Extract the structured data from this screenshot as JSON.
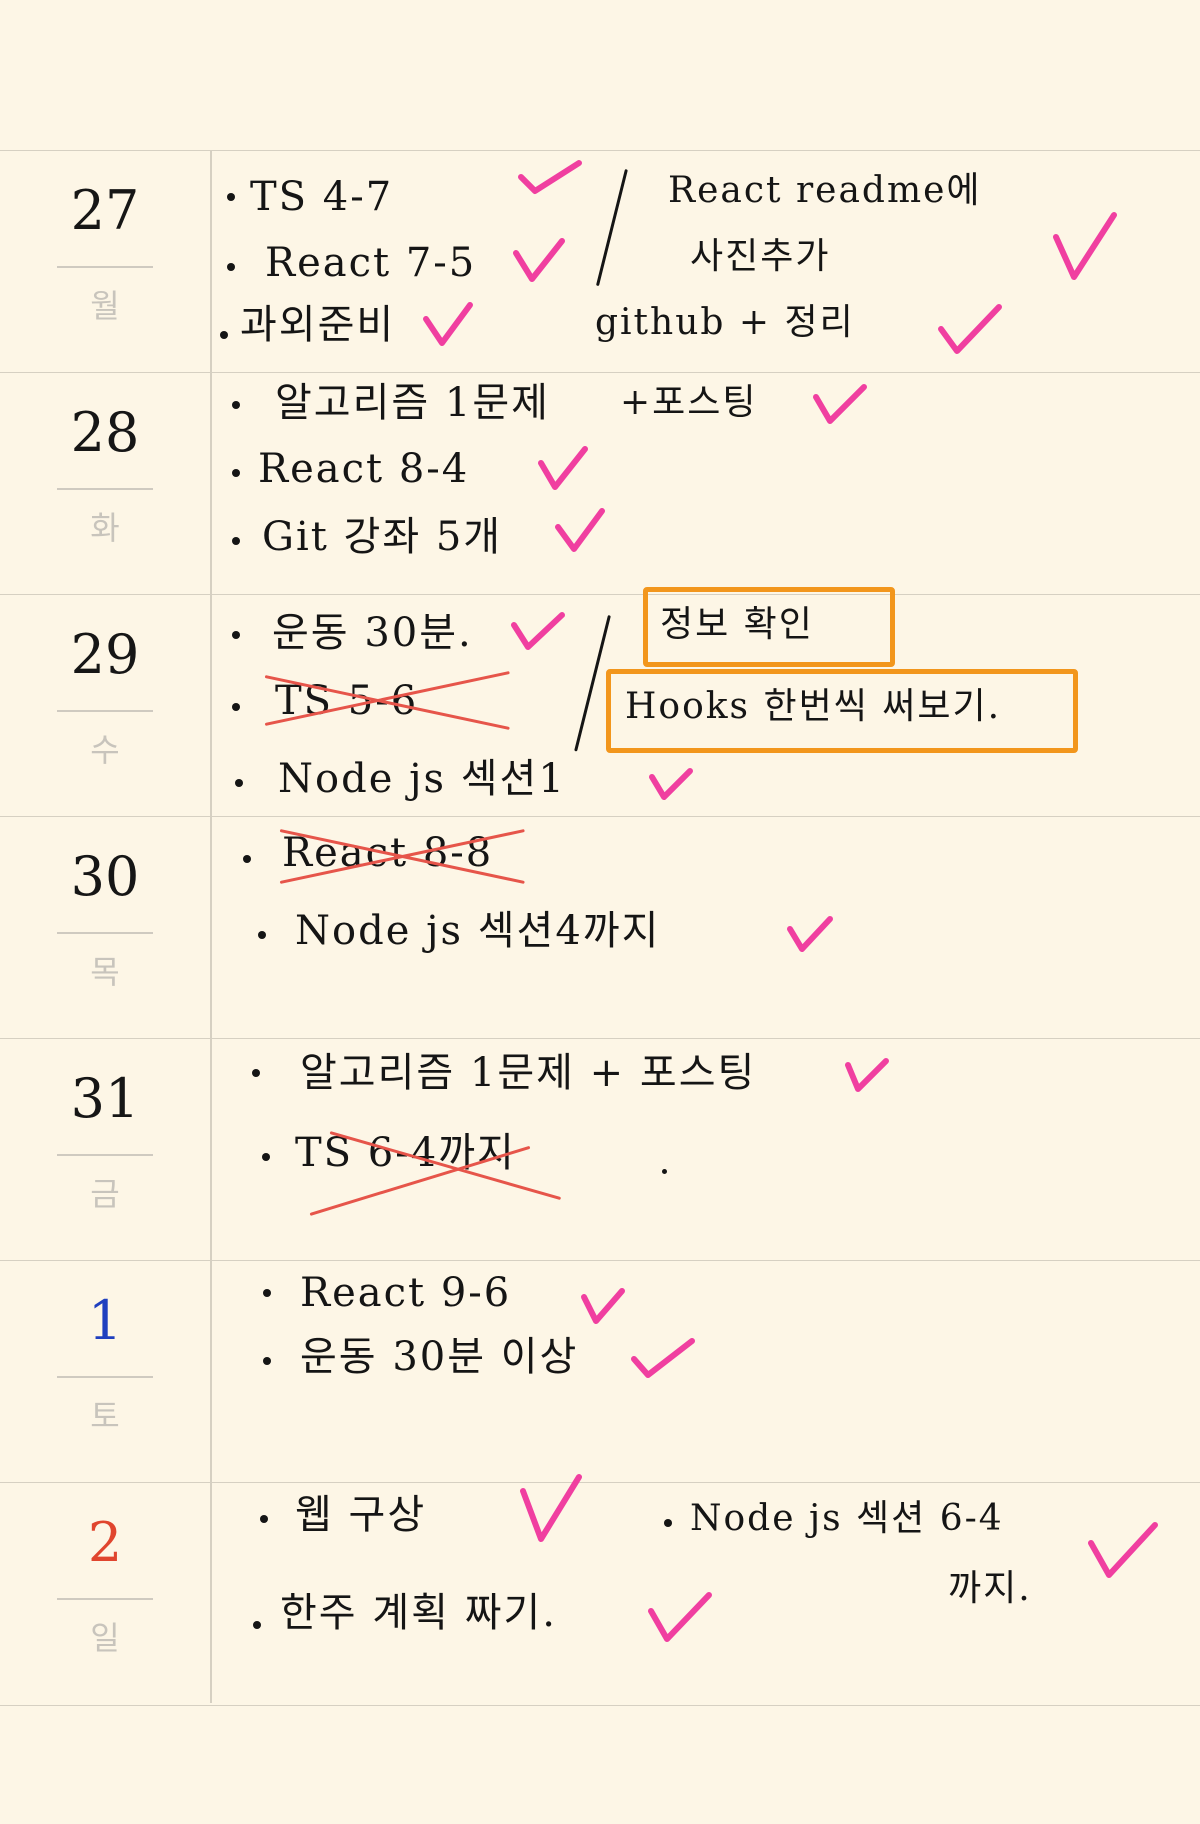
{
  "days": [
    {
      "date": "27",
      "weekday": "월",
      "date_color": "#161616",
      "tasks": [
        "TS 4-7",
        "React 7-5",
        "과외준비",
        "React readme에",
        "사진추가",
        "github + 정리"
      ]
    },
    {
      "date": "28",
      "weekday": "화",
      "date_color": "#161616",
      "tasks": [
        "알고리즘 1문제",
        "+포스팅",
        "React 8-4",
        "Git 강좌 5개"
      ]
    },
    {
      "date": "29",
      "weekday": "수",
      "date_color": "#161616",
      "tasks": [
        "운동 30분.",
        "TS 5-6",
        "Node js 섹션1",
        "정보 확인",
        "Hooks 한번씩 써보기."
      ]
    },
    {
      "date": "30",
      "weekday": "목",
      "date_color": "#161616",
      "tasks": [
        "React 8-8",
        "Node js 섹션4까지"
      ]
    },
    {
      "date": "31",
      "weekday": "금",
      "date_color": "#161616",
      "tasks": [
        "알고리즘 1문제 + 포스팅",
        "TS 6-4까지"
      ]
    },
    {
      "date": "1",
      "weekday": "토",
      "date_color": "#1f3fbf",
      "tasks": [
        "React 9-6",
        "운동 30분 이상"
      ]
    },
    {
      "date": "2",
      "weekday": "일",
      "date_color": "#e0452e",
      "tasks": [
        "웹 구상",
        "한주 계획 짜기.",
        "Node js 섹션 6-4",
        "까지."
      ]
    }
  ],
  "status": {
    "completed": [
      "TS 4-7",
      "React 7-5",
      "과외준비",
      "React readme에 사진추가 github + 정리",
      "알고리즘 1문제 +포스팅",
      "React 8-4",
      "Git 강좌 5개",
      "운동 30분.",
      "Node js 섹션1",
      "Node js 섹션4까지",
      "알고리즘 1문제 + 포스팅",
      "React 9-6",
      "운동 30분 이상",
      "웹 구상",
      "한주 계획 짜기.",
      "Node js 섹션 6-4 까지."
    ],
    "cancelled": [
      "TS 5-6",
      "React 8-8",
      "TS 6-4까지"
    ],
    "highlighted": [
      "정보 확인",
      "Hooks 한번씩 써보기."
    ]
  },
  "colors": {
    "background": "#fdf6e6",
    "rule": "#d6d0c2",
    "ink": "#151515",
    "check": "#f03fa0",
    "strike": "#e6554a",
    "highlight_box": "#f2961c",
    "weekday": "#c8c4bc",
    "saturday": "#1f3fbf",
    "sunday": "#e0452e"
  }
}
